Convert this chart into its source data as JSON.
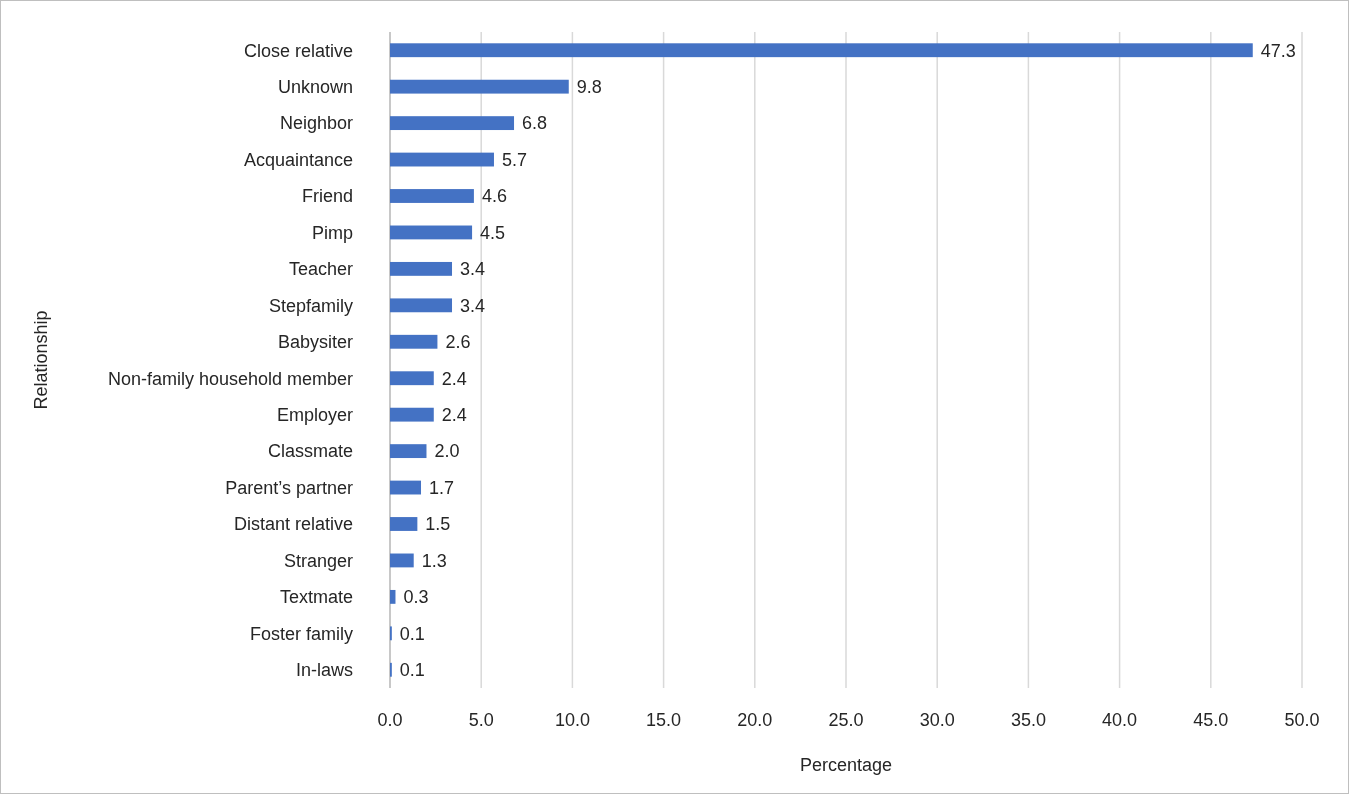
{
  "chart_data": {
    "type": "bar",
    "orientation": "horizontal",
    "xlabel": "Percentage",
    "ylabel": "Relationship",
    "categories": [
      "Close relative",
      "Unknown",
      "Neighbor",
      "Acquaintance",
      "Friend",
      "Pimp",
      "Teacher",
      "Stepfamily",
      "Babysiter",
      "Non-family household member",
      "Employer",
      "Classmate",
      "Parent’s partner",
      "Distant relative",
      "Stranger",
      "Textmate",
      "Foster family",
      "In-laws"
    ],
    "values": [
      47.3,
      9.8,
      6.8,
      5.7,
      4.6,
      4.5,
      3.4,
      3.4,
      2.6,
      2.4,
      2.4,
      2.0,
      1.7,
      1.5,
      1.3,
      0.3,
      0.1,
      0.1
    ],
    "value_labels": [
      "47.3",
      "9.8",
      "6.8",
      "5.7",
      "4.6",
      "4.5",
      "3.4",
      "3.4",
      "2.6",
      "2.4",
      "2.4",
      "2.0",
      "1.7",
      "1.5",
      "1.3",
      "0.3",
      "0.1",
      "0.1"
    ],
    "color": "#4472c4",
    "xlim": [
      0,
      50
    ],
    "xticks": [
      {
        "value": 0,
        "label": "0.0"
      },
      {
        "value": 5,
        "label": "5.0"
      },
      {
        "value": 10,
        "label": "10.0"
      },
      {
        "value": 15,
        "label": "15.0"
      },
      {
        "value": 20,
        "label": "20.0"
      },
      {
        "value": 25,
        "label": "25.0"
      },
      {
        "value": 30,
        "label": "30.0"
      },
      {
        "value": 35,
        "label": "35.0"
      },
      {
        "value": 40,
        "label": "40.0"
      },
      {
        "value": 45,
        "label": "45.0"
      },
      {
        "value": 50,
        "label": "50.0"
      }
    ],
    "grid": "x"
  }
}
